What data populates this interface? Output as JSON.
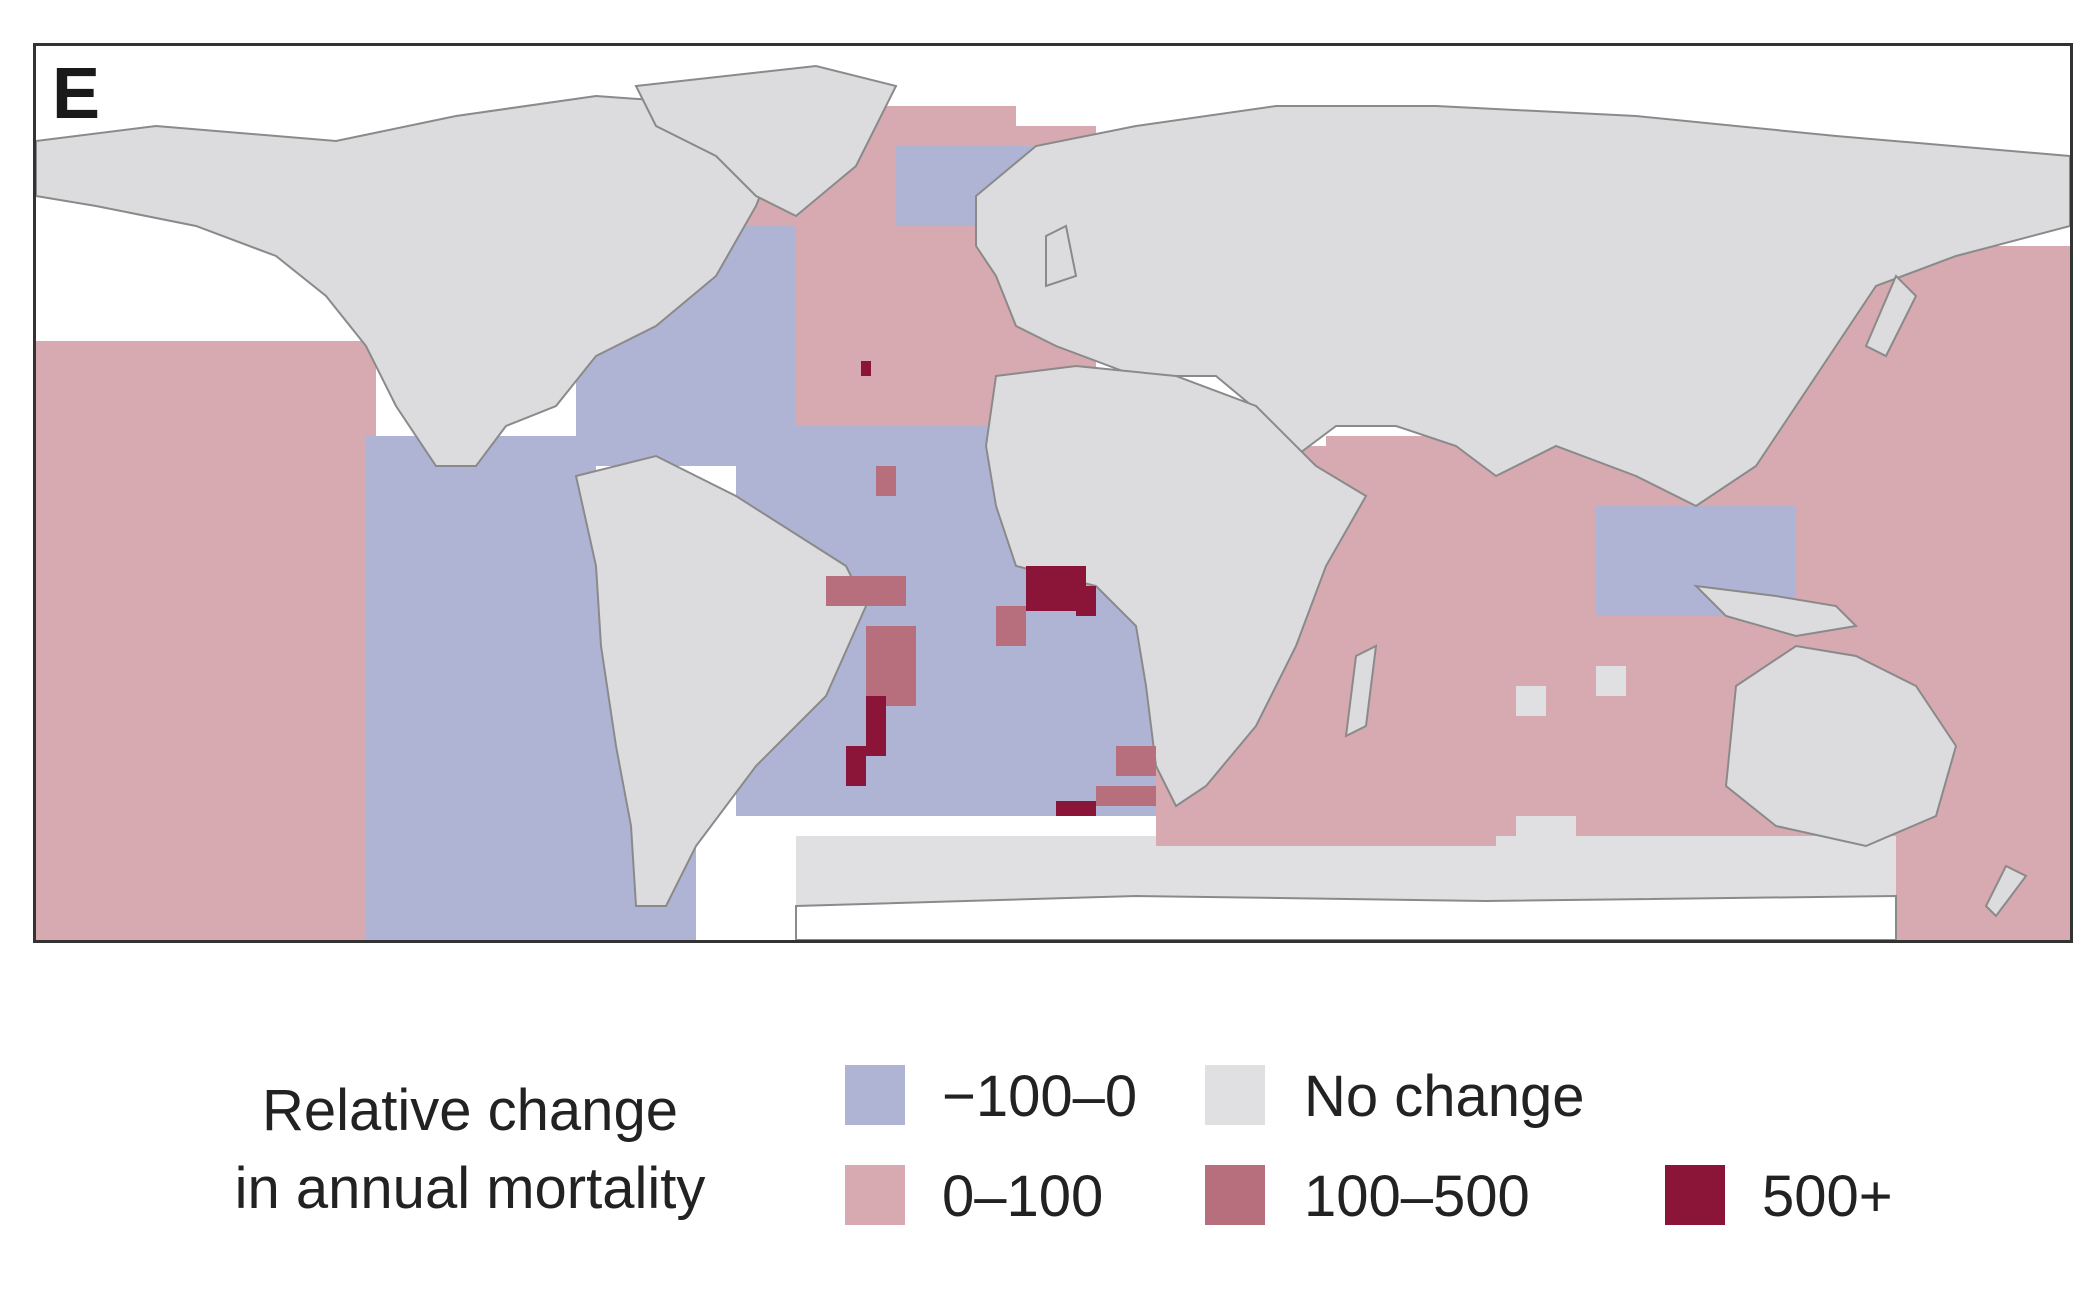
{
  "panel": {
    "label": "E"
  },
  "legend": {
    "title_line1": "Relative change",
    "title_line2": "in annual mortality",
    "items": [
      {
        "label": "−100–0",
        "color": "#b0b4d4"
      },
      {
        "label": "No change",
        "color": "#e0e0e2"
      },
      {
        "label": "0–100",
        "color": "#d7a9b1"
      },
      {
        "label": "100–500",
        "color": "#b86f7d"
      },
      {
        "label": "500+",
        "color": "#8b1538"
      }
    ]
  },
  "colors": {
    "land": "#dcdcde",
    "coast": "#8a8a8a",
    "decrease": "#b0b4d4",
    "no_change": "#e0e0e2",
    "increase_low": "#d7a9b1",
    "increase_mid": "#b86f7d",
    "increase_high": "#8b1538"
  }
}
